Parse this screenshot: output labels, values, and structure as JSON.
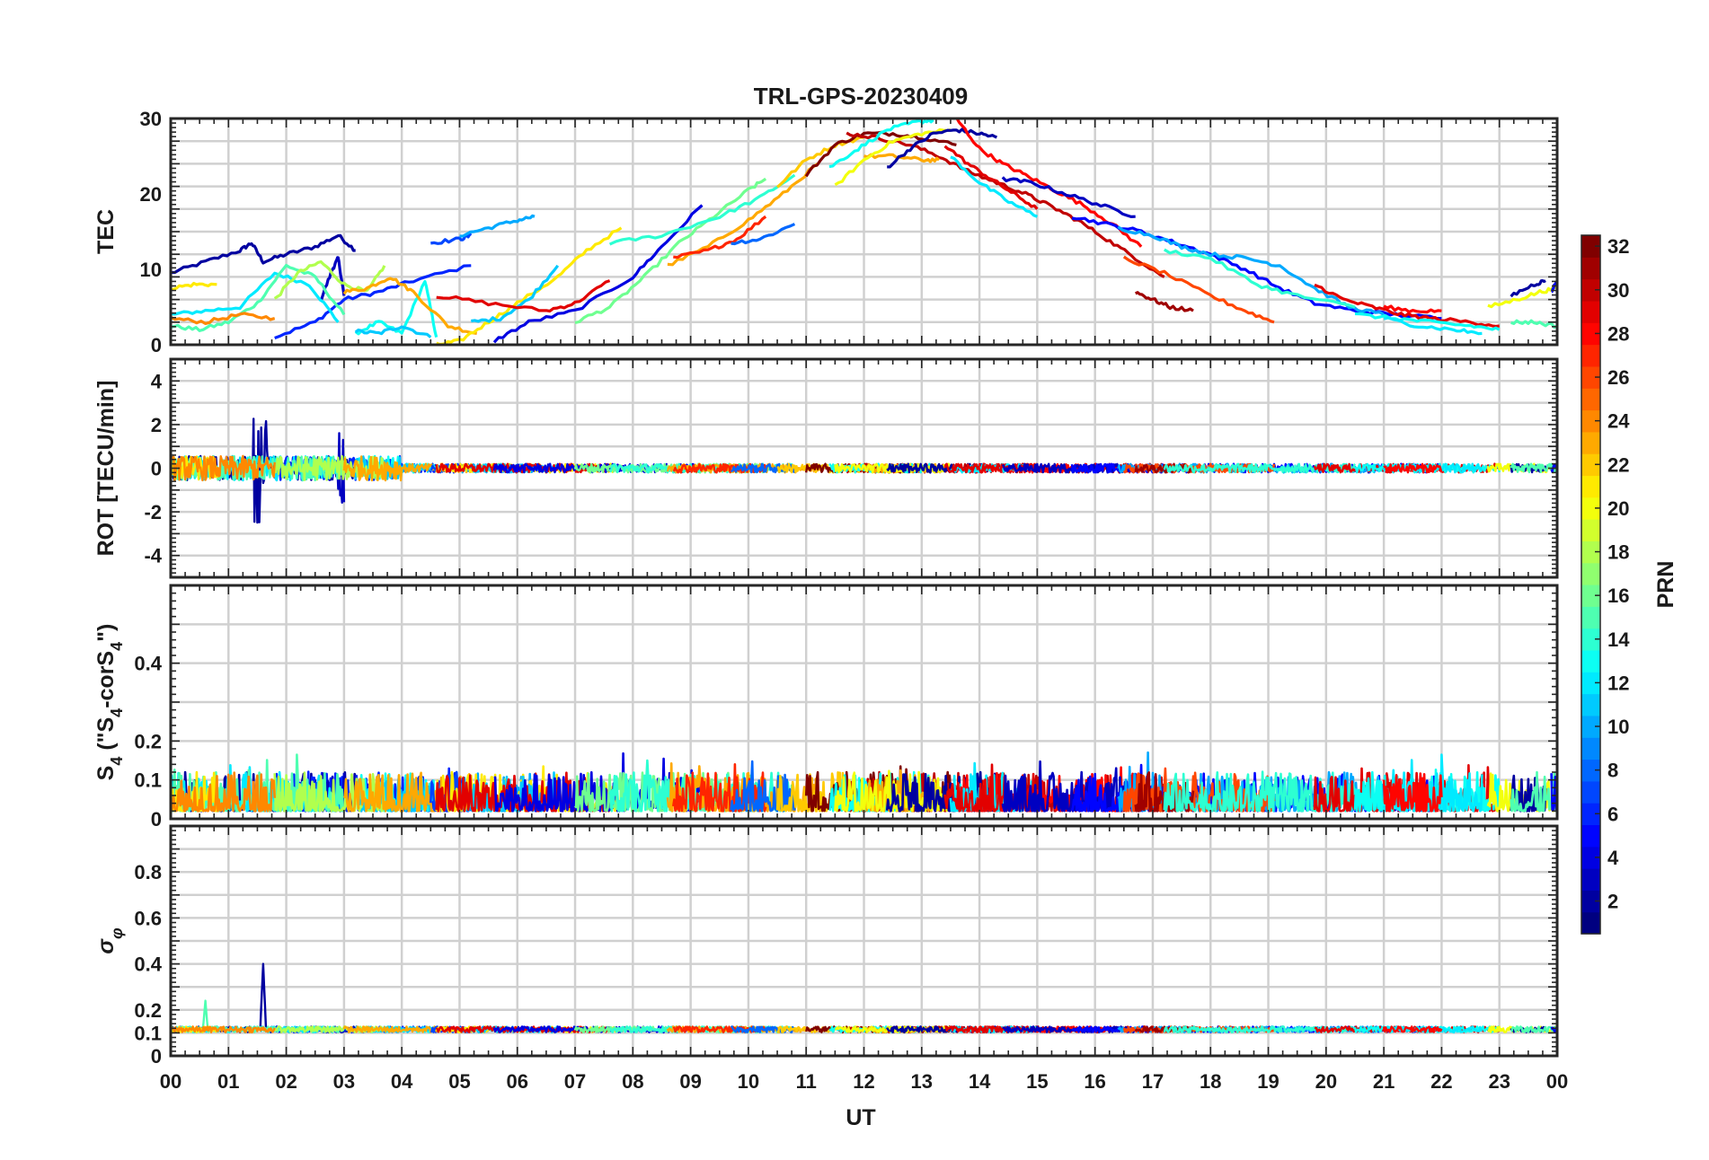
{
  "chart_data": {
    "type": "line",
    "title": "TRL-GPS-20230409",
    "xlabel": "UT",
    "xlim": [
      0,
      24
    ],
    "x_tick_labels": [
      "00",
      "01",
      "02",
      "03",
      "04",
      "05",
      "06",
      "07",
      "08",
      "09",
      "10",
      "11",
      "12",
      "13",
      "14",
      "15",
      "16",
      "17",
      "18",
      "19",
      "20",
      "21",
      "22",
      "23",
      "00"
    ],
    "colorbar": {
      "label": "PRN",
      "colormap": "jet",
      "range": [
        1,
        32
      ],
      "ticks": [
        "2",
        "4",
        "6",
        "8",
        "10",
        "12",
        "14",
        "16",
        "18",
        "20",
        "22",
        "24",
        "26",
        "28",
        "30",
        "32"
      ]
    },
    "panels": [
      {
        "ylabel": "TEC",
        "ylim": [
          0,
          30
        ],
        "yticks": [
          "0",
          "10",
          "20",
          "30"
        ],
        "series": [
          {
            "prn": 2,
            "x": [
              0.0,
              0.6,
              1.2,
              1.4,
              1.6,
              2.0,
              2.5,
              2.9,
              3.2
            ],
            "y": [
              9.5,
              11.0,
              12.5,
              13.5,
              11.0,
              12.0,
              13.0,
              14.5,
              12.5
            ]
          },
          {
            "prn": 6,
            "x": [
              1.8,
              2.5,
              3.0,
              3.6,
              4.2,
              5.2
            ],
            "y": [
              1.0,
              3.0,
              6.0,
              7.0,
              8.5,
              10.5
            ]
          },
          {
            "prn": 3,
            "x": [
              2.6,
              2.8,
              2.9,
              3.0
            ],
            "y": [
              6.0,
              10.0,
              11.5,
              6.5
            ]
          },
          {
            "prn": 12,
            "x": [
              0.0,
              0.6,
              1.2,
              1.8,
              2.4,
              2.9
            ],
            "y": [
              4.0,
              4.5,
              5.0,
              9.5,
              8.0,
              3.0
            ]
          },
          {
            "prn": 15,
            "x": [
              0.0,
              0.5,
              1.0,
              1.5,
              2.0,
              2.5,
              3.0
            ],
            "y": [
              2.5,
              2.0,
              3.0,
              5.5,
              10.5,
              9.0,
              4.0
            ]
          },
          {
            "prn": 13,
            "x": [
              3.2,
              3.6,
              4.0,
              4.4,
              4.6
            ],
            "y": [
              1.5,
              3.0,
              1.5,
              8.5,
              1.0
            ]
          },
          {
            "prn": 11,
            "x": [
              3.2,
              3.6,
              4.0,
              4.5
            ],
            "y": [
              1.8,
              1.5,
              2.5,
              1.0
            ]
          },
          {
            "prn": 21,
            "x": [
              0.0,
              0.4,
              0.8
            ],
            "y": [
              7.5,
              8.0,
              8.0
            ]
          },
          {
            "prn": 18,
            "x": [
              1.8,
              2.2,
              2.6,
              3.0,
              3.4,
              3.7
            ],
            "y": [
              6.0,
              9.5,
              11.0,
              8.0,
              7.0,
              10.5
            ]
          },
          {
            "prn": 24,
            "x": [
              0.0,
              0.6,
              1.2,
              1.8
            ],
            "y": [
              3.5,
              3.0,
              4.0,
              3.5
            ]
          },
          {
            "prn": 23,
            "x": [
              3.0,
              3.4,
              3.8,
              4.2,
              4.8,
              5.3
            ],
            "y": [
              7.0,
              7.5,
              9.0,
              7.0,
              2.5,
              1.5
            ]
          },
          {
            "prn": 7,
            "x": [
              4.5,
              5.0,
              5.2
            ],
            "y": [
              13.5,
              14.0,
              14.5
            ]
          },
          {
            "prn": 10,
            "x": [
              5.0,
              5.5,
              6.0,
              6.3
            ],
            "y": [
              14.5,
              15.5,
              16.5,
              17.0
            ]
          },
          {
            "prn": 21,
            "x": [
              4.6,
              5.0,
              5.5,
              6.0,
              6.7,
              7.2,
              7.8
            ],
            "y": [
              0.0,
              0.5,
              3.0,
              5.5,
              9.0,
              12.5,
              15.5
            ]
          },
          {
            "prn": 11,
            "x": [
              5.2,
              5.7,
              6.2,
              6.7
            ],
            "y": [
              3.0,
              3.5,
              6.0,
              10.5
            ]
          },
          {
            "prn": 29,
            "x": [
              4.6,
              5.5,
              6.5,
              7.0,
              7.6
            ],
            "y": [
              6.5,
              5.5,
              4.5,
              5.5,
              8.5
            ]
          },
          {
            "prn": 4,
            "x": [
              5.6,
              6.2,
              7.0,
              8.0,
              8.5,
              9.2
            ],
            "y": [
              0.5,
              3.0,
              4.5,
              9.0,
              13.0,
              18.5
            ]
          },
          {
            "prn": 16,
            "x": [
              7.0,
              7.6,
              8.2,
              8.8,
              9.4,
              10.0,
              10.3
            ],
            "y": [
              3.0,
              5.0,
              9.0,
              13.5,
              17.0,
              20.5,
              22.0
            ]
          },
          {
            "prn": 14,
            "x": [
              7.6,
              8.5,
              9.5,
              10.2,
              10.8
            ],
            "y": [
              13.5,
              14.5,
              17.0,
              19.5,
              22.5
            ]
          },
          {
            "prn": 23,
            "x": [
              8.6,
              9.3,
              10.0,
              10.6,
              11.2
            ],
            "y": [
              10.5,
              13.0,
              16.5,
              20.0,
              24.0
            ]
          },
          {
            "prn": 27,
            "x": [
              8.7,
              9.3,
              9.8,
              10.3
            ],
            "y": [
              11.5,
              12.5,
              14.0,
              17.0
            ]
          },
          {
            "prn": 8,
            "x": [
              9.7,
              10.2,
              10.8
            ],
            "y": [
              13.5,
              14.0,
              16.0
            ]
          },
          {
            "prn": 22,
            "x": [
              10.5,
              11.0,
              11.5,
              12.0
            ],
            "y": [
              21.0,
              24.5,
              26.5,
              27.5
            ]
          },
          {
            "prn": 32,
            "x": [
              11.0,
              11.5,
              12.0,
              12.5,
              13.0,
              13.6
            ],
            "y": [
              22.5,
              26.5,
              28.0,
              28.0,
              27.5,
              26.5
            ]
          },
          {
            "prn": 30,
            "x": [
              11.7,
              12.2,
              12.8,
              13.3,
              13.8,
              14.3,
              14.8,
              15.2,
              15.7,
              16.2,
              16.7,
              17.2
            ],
            "y": [
              28.0,
              27.5,
              26.5,
              25.0,
              23.0,
              21.5,
              20.0,
              18.5,
              16.5,
              14.0,
              11.5,
              9.0
            ]
          },
          {
            "prn": 13,
            "x": [
              11.4,
              11.9,
              12.4,
              12.9,
              13.2
            ],
            "y": [
              23.5,
              26.0,
              28.5,
              29.5,
              29.8
            ]
          },
          {
            "prn": 23,
            "x": [
              12.0,
              12.5,
              13.0,
              13.3
            ],
            "y": [
              25.0,
              25.0,
              24.5,
              24.5
            ]
          },
          {
            "prn": 20,
            "x": [
              11.5,
              12.0,
              12.5,
              13.0,
              13.5
            ],
            "y": [
              21.0,
              24.5,
              27.0,
              28.0,
              28.5
            ]
          },
          {
            "prn": 2,
            "x": [
              12.4,
              12.8,
              13.2,
              13.6,
              14.0,
              14.3
            ],
            "y": [
              23.5,
              26.0,
              28.0,
              28.5,
              28.0,
              27.5
            ]
          },
          {
            "prn": 28,
            "x": [
              13.6,
              14.0,
              14.4,
              14.8,
              15.3,
              15.8,
              16.3,
              16.8
            ],
            "y": [
              30.0,
              26.0,
              24.0,
              22.5,
              20.5,
              18.5,
              16.0,
              13.0
            ]
          },
          {
            "prn": 12,
            "x": [
              13.5,
              14.0,
              14.5,
              15.0
            ],
            "y": [
              25.0,
              21.5,
              19.0,
              17.0
            ]
          },
          {
            "prn": 29,
            "x": [
              13.4,
              13.8,
              14.2,
              14.6,
              15.0
            ],
            "y": [
              26.5,
              24.0,
              22.0,
              20.0,
              18.0
            ]
          },
          {
            "prn": 3,
            "x": [
              14.4,
              14.9,
              15.5,
              16.1,
              16.7
            ],
            "y": [
              22.0,
              21.5,
              20.0,
              18.5,
              17.0
            ]
          },
          {
            "prn": 5,
            "x": [
              15.6,
              16.2,
              16.8,
              17.4,
              18.0,
              18.6,
              19.2,
              19.8,
              20.5,
              21.2,
              22.0
            ],
            "y": [
              17.0,
              16.0,
              15.0,
              13.5,
              12.0,
              10.0,
              7.5,
              5.5,
              4.5,
              4.0,
              3.5
            ]
          },
          {
            "prn": 10,
            "x": [
              16.4,
              17.0,
              17.5,
              18.0,
              18.6,
              19.2,
              19.8,
              20.4,
              21.0
            ],
            "y": [
              15.5,
              14.5,
              13.0,
              12.0,
              11.5,
              10.5,
              7.5,
              5.0,
              4.0
            ]
          },
          {
            "prn": 26,
            "x": [
              16.5,
              17.2,
              18.0,
              18.6,
              19.1
            ],
            "y": [
              11.5,
              9.5,
              6.5,
              4.5,
              3.0
            ]
          },
          {
            "prn": 31,
            "x": [
              16.7,
              17.0,
              17.3,
              17.7
            ],
            "y": [
              7.0,
              6.0,
              5.0,
              4.5
            ]
          },
          {
            "prn": 14,
            "x": [
              17.2,
              18.0,
              18.8,
              19.5,
              20.5
            ],
            "y": [
              12.5,
              11.5,
              8.0,
              6.5,
              5.0
            ]
          },
          {
            "prn": 29,
            "x": [
              19.8,
              20.3,
              20.8,
              21.3,
              21.8,
              22.5,
              23.0
            ],
            "y": [
              8.0,
              6.0,
              5.0,
              4.0,
              3.5,
              3.0,
              2.5
            ]
          },
          {
            "prn": 13,
            "x": [
              20.5,
              21.2,
              21.8,
              22.5,
              23.0
            ],
            "y": [
              4.0,
              3.5,
              3.0,
              2.5,
              2.0
            ]
          },
          {
            "prn": 12,
            "x": [
              21.0,
              21.6,
              22.2,
              22.7
            ],
            "y": [
              3.5,
              2.5,
              2.0,
              1.5
            ]
          },
          {
            "prn": 28,
            "x": [
              21.0,
              21.5,
              22.0
            ],
            "y": [
              5.0,
              4.5,
              4.5
            ]
          },
          {
            "prn": 20,
            "x": [
              22.8,
              23.3,
              23.7,
              24.0
            ],
            "y": [
              5.0,
              6.0,
              7.0,
              7.5
            ]
          },
          {
            "prn": 2,
            "x": [
              23.2,
              23.6,
              23.8
            ],
            "y": [
              6.5,
              8.0,
              8.5
            ]
          },
          {
            "prn": 15,
            "x": [
              23.2,
              23.6,
              24.0
            ],
            "y": [
              3.0,
              3.0,
              2.5
            ]
          },
          {
            "prn": 5,
            "x": [
              23.9,
              24.0
            ],
            "y": [
              7.0,
              8.5
            ]
          }
        ]
      },
      {
        "ylabel": "ROT [TECU/min]",
        "ylim": [
          -5,
          5
        ],
        "yticks": [
          "-4",
          "-2",
          "0",
          "2",
          "4"
        ]
      },
      {
        "ylabel": "S4 (\"S4-corS4\")",
        "ylabel_parts": [
          "S",
          "4",
          " (\"S",
          "4",
          "-corS",
          "4",
          "\")"
        ],
        "ylim": [
          0,
          0.6
        ],
        "yticks": [
          "0",
          "0.1",
          "0.2",
          "0.4"
        ]
      },
      {
        "ylabel": "σφ",
        "ylabel_parts": [
          "σ",
          "φ"
        ],
        "ylim": [
          0,
          1
        ],
        "yticks": [
          "0",
          "0.1",
          "0.2",
          "0.4",
          "0.6",
          "0.8"
        ]
      }
    ]
  }
}
